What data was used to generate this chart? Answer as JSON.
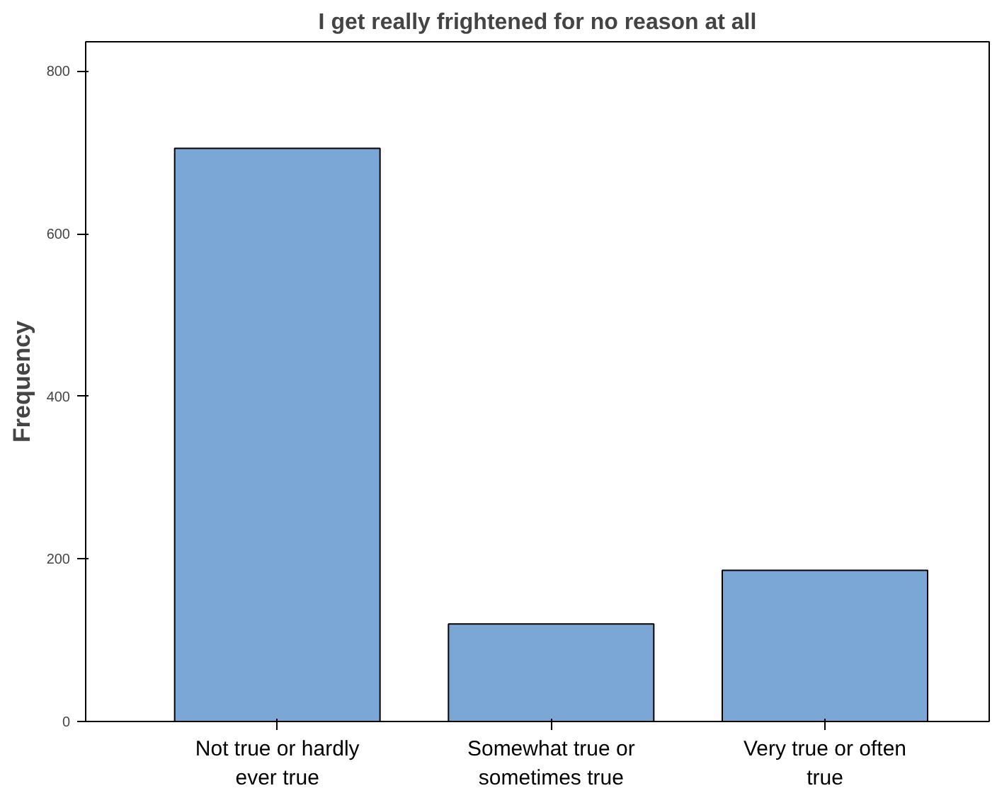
{
  "chart_data": {
    "type": "bar",
    "title": "I get really frightened for no reason at all",
    "ylabel": "Frequency",
    "categories": [
      "Not true or hardly ever true",
      "Somewhat true or sometimes true",
      "Very true or often true"
    ],
    "values": [
      705,
      120,
      186
    ],
    "color": "#7aa7d6",
    "ylim": [
      0,
      836
    ],
    "yticks": [
      0,
      200,
      400,
      600,
      800
    ],
    "grid": false
  }
}
